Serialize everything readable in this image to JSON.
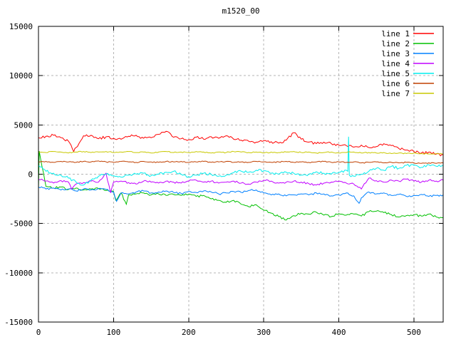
{
  "title": "m1520_00",
  "chart_data": {
    "type": "line",
    "title": "m1520_00",
    "xlabel": "",
    "ylabel": "",
    "x_range": [
      0,
      539
    ],
    "y_range": [
      -15000,
      15000
    ],
    "x_ticks": [
      0,
      100,
      200,
      300,
      400,
      500
    ],
    "y_ticks": [
      -15000,
      -10000,
      -5000,
      0,
      5000,
      10000,
      15000
    ],
    "grid": true,
    "legend_position": "top-right",
    "colors": {
      "background": "#ffffff",
      "axis": "#000000",
      "text": "#000000",
      "grid": "#b4b4b4"
    },
    "x_step": 10,
    "series": [
      {
        "name": "line 1",
        "color": "#ff0000",
        "jitter": 140,
        "extra_points": [
          [
            47,
            2300
          ]
        ],
        "values": [
          3700,
          3850,
          3950,
          3700,
          3350,
          2700,
          3900,
          3950,
          3600,
          3800,
          3650,
          3550,
          3850,
          3950,
          3650,
          3700,
          4050,
          4350,
          3750,
          3600,
          3500,
          3750,
          3550,
          3800,
          3650,
          3900,
          3550,
          3450,
          3350,
          3250,
          3400,
          3300,
          3150,
          3450,
          4200,
          3550,
          3250,
          3100,
          3250,
          3100,
          2950,
          2900,
          2750,
          2950,
          2700,
          2800,
          3100,
          2900,
          2600,
          2450,
          2300,
          2150,
          2250,
          2050,
          1950
        ]
      },
      {
        "name": "line 2",
        "color": "#00c000",
        "jitter": 110,
        "extra_points": [
          [
            1,
            2350
          ],
          [
            103,
            -2650
          ],
          [
            117,
            -3050
          ]
        ],
        "values": [
          -1500,
          -1250,
          -1400,
          -1300,
          -1550,
          -1400,
          -1600,
          -1500,
          -1450,
          -1650,
          -1750,
          -1900,
          -2100,
          -2000,
          -1900,
          -2100,
          -2000,
          -2150,
          -2050,
          -2150,
          -2050,
          -2250,
          -2150,
          -2500,
          -2650,
          -2850,
          -2650,
          -3050,
          -3300,
          -3100,
          -3650,
          -3950,
          -4300,
          -4650,
          -4200,
          -3950,
          -4050,
          -3850,
          -4150,
          -4300,
          -4000,
          -4150,
          -4050,
          -4250,
          -3800,
          -3750,
          -3900,
          -4100,
          -4350,
          -4200,
          -4100,
          -4250,
          -4050,
          -4350,
          -4400
        ]
      },
      {
        "name": "line 3",
        "color": "#0080ff",
        "jitter": 100,
        "extra_points": [
          [
            104,
            -2750
          ],
          [
            427,
            -2950
          ]
        ],
        "values": [
          -1300,
          -1500,
          -1400,
          -1600,
          -1500,
          -1700,
          -1500,
          -1600,
          -1450,
          -1550,
          -1800,
          -1900,
          -2000,
          -1800,
          -1700,
          -1900,
          -1800,
          -1700,
          -1850,
          -1950,
          -1750,
          -1850,
          -1700,
          -1800,
          -2000,
          -1900,
          -1750,
          -1850,
          -1650,
          -1600,
          -1900,
          -2100,
          -2000,
          -2200,
          -2100,
          -2000,
          -2100,
          -1900,
          -2000,
          -2200,
          -2100,
          -1900,
          -2200,
          -2400,
          -1800,
          -2000,
          -1900,
          -2150,
          -2050,
          -2250,
          -2150,
          -2050,
          -2250,
          -2150,
          -2100
        ]
      },
      {
        "name": "line 4",
        "color": "#c000ff",
        "jitter": 100,
        "extra_points": [
          [
            44,
            -1500
          ],
          [
            96,
            -1900
          ]
        ],
        "values": [
          -500,
          -700,
          -900,
          -650,
          -800,
          -1000,
          -850,
          -700,
          -800,
          100,
          -800,
          -700,
          -850,
          -1000,
          -700,
          -800,
          -900,
          -700,
          -800,
          -900,
          -700,
          -600,
          -800,
          -700,
          -900,
          -800,
          -700,
          -900,
          -1000,
          -800,
          -600,
          -700,
          -900,
          -800,
          -700,
          -800,
          -950,
          -1100,
          -900,
          -800,
          -700,
          -900,
          -1000,
          -1500,
          -400,
          -650,
          -800,
          -600,
          -700,
          -500,
          -700,
          -800,
          -600,
          -700,
          -600
        ]
      },
      {
        "name": "line 5",
        "color": "#00eeee",
        "jitter": 130,
        "extra_points": [
          [
            412,
            300
          ],
          [
            413,
            3800
          ],
          [
            414,
            -100
          ]
        ],
        "values": [
          900,
          300,
          100,
          -100,
          -400,
          -800,
          -1100,
          -600,
          -200,
          0,
          -150,
          -300,
          -100,
          0,
          100,
          -150,
          0,
          200,
          300,
          0,
          -250,
          -100,
          100,
          0,
          -200,
          -100,
          150,
          300,
          200,
          400,
          350,
          100,
          0,
          200,
          100,
          -100,
          0,
          250,
          100,
          0,
          200,
          400,
          -200,
          0,
          300,
          600,
          400,
          800,
          600,
          900,
          900,
          700,
          950,
          800,
          900
        ]
      },
      {
        "name": "line 6",
        "color": "#c04000",
        "jitter": 55,
        "extra_points": [],
        "values": [
          1250,
          1300,
          1200,
          1300,
          1250,
          1200,
          1300,
          1250,
          1350,
          1250,
          1200,
          1300,
          1250,
          1200,
          1300,
          1250,
          1200,
          1300,
          1250,
          1300,
          1200,
          1250,
          1300,
          1200,
          1250,
          1300,
          1200,
          1250,
          1200,
          1300,
          1250,
          1200,
          1250,
          1300,
          1200,
          1250,
          1200,
          1250,
          1300,
          1200,
          1250,
          1200,
          1250,
          1150,
          1200,
          1250,
          1150,
          1200,
          1150,
          1200,
          1150,
          1100,
          1150,
          1100,
          1150
        ]
      },
      {
        "name": "line 7",
        "color": "#c8c800",
        "jitter": 55,
        "extra_points": [],
        "values": [
          2250,
          2200,
          2300,
          2250,
          2150,
          2250,
          2300,
          2200,
          2250,
          2300,
          2200,
          2250,
          2300,
          2200,
          2250,
          2150,
          2250,
          2300,
          2200,
          2250,
          2200,
          2300,
          2250,
          2150,
          2250,
          2200,
          2300,
          2250,
          2200,
          2250,
          2150,
          2250,
          2200,
          2250,
          2300,
          2200,
          2250,
          2150,
          2200,
          2250,
          2150,
          2200,
          2250,
          2150,
          2200,
          2150,
          2200,
          2100,
          2150,
          2100,
          2150,
          2100,
          2050,
          2100,
          2050
        ]
      }
    ]
  }
}
